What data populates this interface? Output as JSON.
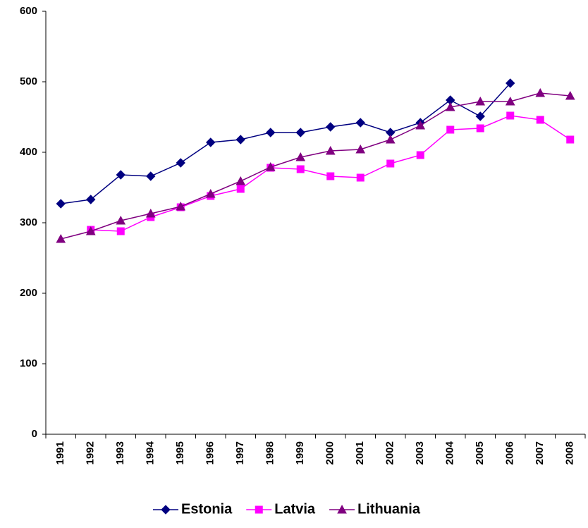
{
  "chart_data": {
    "type": "line",
    "categories": [
      "1991",
      "1992",
      "1993",
      "1994",
      "1995",
      "1996",
      "1997",
      "1998",
      "1999",
      "2000",
      "2001",
      "2002",
      "2003",
      "2004",
      "2005",
      "2006",
      "2007",
      "2008"
    ],
    "series": [
      {
        "name": "Estonia",
        "color": "#000080",
        "marker": "diamond",
        "values": [
          327,
          333,
          368,
          366,
          385,
          414,
          418,
          428,
          428,
          436,
          442,
          428,
          442,
          474,
          451,
          498,
          null,
          null
        ]
      },
      {
        "name": "Latvia",
        "color": "#ff00ff",
        "marker": "square",
        "values": [
          null,
          290,
          288,
          308,
          322,
          338,
          348,
          378,
          376,
          366,
          364,
          384,
          396,
          432,
          434,
          452,
          446,
          418
        ]
      },
      {
        "name": "Lithuania",
        "color": "#800080",
        "marker": "triangle",
        "values": [
          277,
          288,
          303,
          313,
          323,
          341,
          359,
          379,
          393,
          402,
          404,
          418,
          438,
          464,
          472,
          472,
          484,
          480
        ]
      }
    ],
    "ylim": [
      0,
      600
    ],
    "yticks": [
      0,
      100,
      200,
      300,
      400,
      500,
      600
    ],
    "grid": false,
    "legend": "bottom"
  }
}
